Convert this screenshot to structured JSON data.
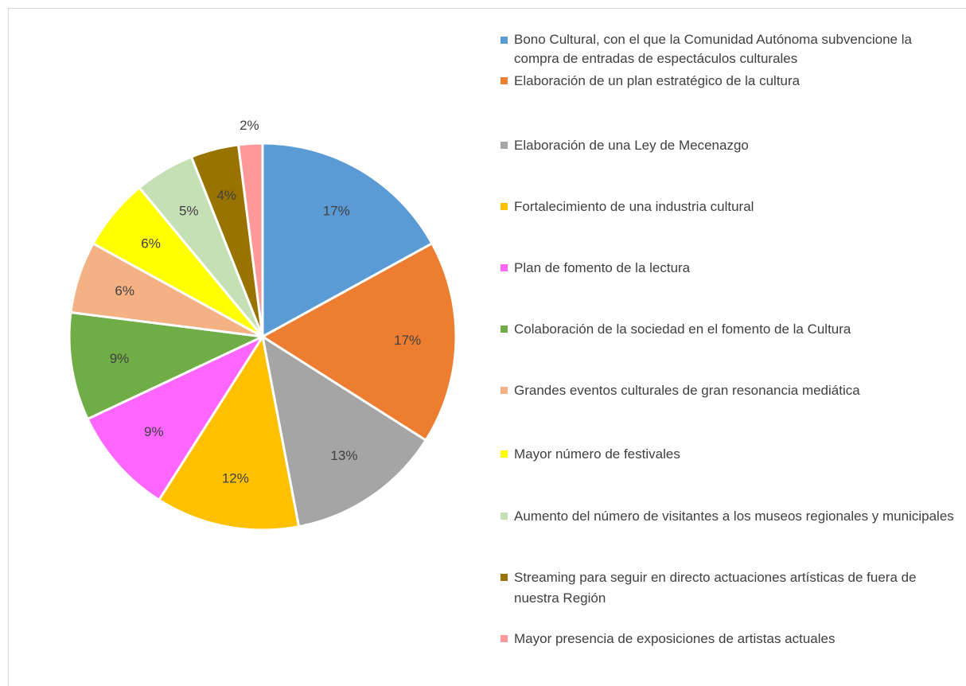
{
  "chart_data": {
    "type": "pie",
    "categories": [
      "Bono Cultural, con el que la Comunidad Autónoma subvencione la compra de entradas de espectáculos culturales",
      "Elaboración de un plan estratégico de la cultura",
      "Elaboración de una Ley de Mecenazgo",
      "Fortalecimiento de una industria cultural",
      "Plan de fomento de la lectura",
      "Colaboración de la sociedad en el fomento de la Cultura",
      "Grandes eventos culturales de gran resonancia mediática",
      "Mayor número de festivales",
      "Aumento del número de visitantes a los museos regionales y municipales",
      "Streaming para seguir en directo actuaciones artísticas de fuera de nuestra Región",
      "Mayor presencia de exposiciones de artistas actuales"
    ],
    "values": [
      17,
      17,
      13,
      12,
      9,
      9,
      6,
      6,
      5,
      4,
      2
    ],
    "value_labels": [
      "17%",
      "17%",
      "13%",
      "12%",
      "9%",
      "9%",
      "6%",
      "6%",
      "5%",
      "4%",
      "2%"
    ],
    "colors": [
      "#5b9bd5",
      "#ed7d31",
      "#a5a5a5",
      "#ffc000",
      "#ff66ff",
      "#70ad47",
      "#f4b183",
      "#ffff00",
      "#c5e0b4",
      "#997300",
      "#ff9999"
    ],
    "legend": "right"
  }
}
